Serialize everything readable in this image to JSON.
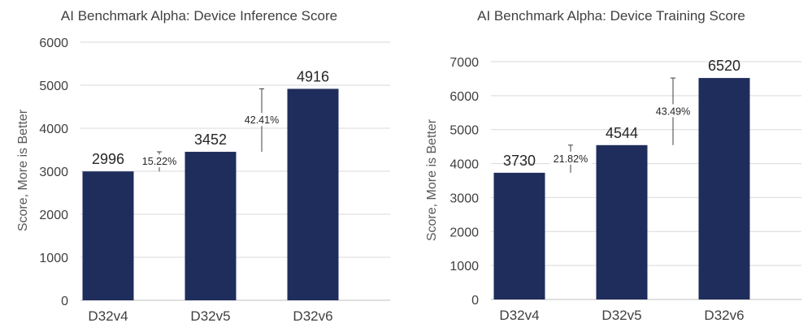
{
  "chart_data": [
    {
      "type": "bar",
      "title": "AI Benchmark Alpha: Device Inference Score",
      "ylabel": "Score, More is Better",
      "xlabel": "",
      "categories": [
        "D32v4",
        "D32v5",
        "D32v6"
      ],
      "values": [
        2996,
        3452,
        4916
      ],
      "data_labels": [
        "2996",
        "3452",
        "4916"
      ],
      "ylim": [
        0,
        6000
      ],
      "yticks": [
        0,
        1000,
        2000,
        3000,
        4000,
        5000,
        6000
      ],
      "grid": true,
      "annotations": [
        {
          "text": "15.22%",
          "from": 2996,
          "to": 3452
        },
        {
          "text": "42.41%",
          "from": 3452,
          "to": 4916
        }
      ],
      "bar_color": "#1f2d5c"
    },
    {
      "type": "bar",
      "title": "AI Benchmark Alpha: Device Training Score",
      "ylabel": "Score, More is Better",
      "xlabel": "",
      "categories": [
        "D32v4",
        "D32v5",
        "D32v6"
      ],
      "values": [
        3730,
        4544,
        6520
      ],
      "data_labels": [
        "3730",
        "4544",
        "6520"
      ],
      "ylim": [
        0,
        7000
      ],
      "yticks": [
        0,
        1000,
        2000,
        3000,
        4000,
        5000,
        6000,
        7000
      ],
      "grid": true,
      "annotations": [
        {
          "text": "21.82%",
          "from": 3730,
          "to": 4544
        },
        {
          "text": "43.49%",
          "from": 4544,
          "to": 6520
        }
      ],
      "bar_color": "#1f2d5c"
    }
  ]
}
